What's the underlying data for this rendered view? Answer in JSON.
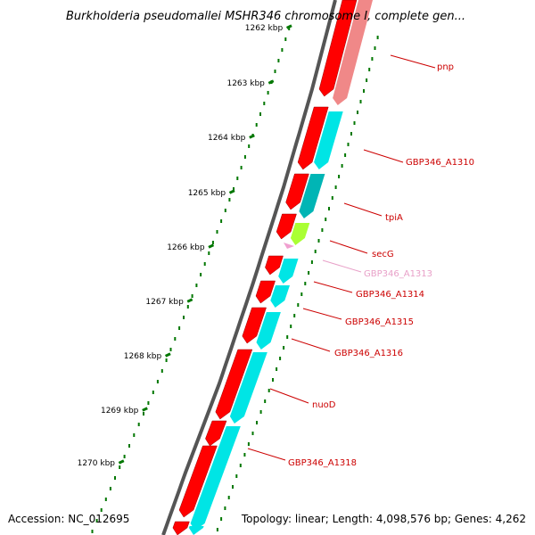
{
  "title": "Burkholderia pseudomallei MSHR346 chromosome I, complete gen...",
  "footer": {
    "accession": "Accession: NC_012695",
    "summary": "Topology: linear; Length: 4,098,576 bp; Genes: 4,262"
  },
  "colors": {
    "cds": "#ff0000",
    "cds_dark": "#990000",
    "feature_cyan": "#00e5e5",
    "feature_teal": "#00b5b5",
    "feature_green": "#aaff33",
    "feature_pink": "#f0a0d0",
    "pnp_pale": "#f08888",
    "label_red": "#cc0000",
    "label_pink": "#e8a0c8",
    "tick_green": "#007700",
    "backbone": "#555555"
  },
  "ruler": {
    "ticks": [
      {
        "label": "1262 kbp"
      },
      {
        "label": "1263 kbp"
      },
      {
        "label": "1264 kbp"
      },
      {
        "label": "1265 kbp"
      },
      {
        "label": "1266 kbp"
      },
      {
        "label": "1267 kbp"
      },
      {
        "label": "1268 kbp"
      },
      {
        "label": "1269 kbp"
      },
      {
        "label": "1270 kbp"
      }
    ]
  },
  "genes": [
    {
      "label": "pnp"
    },
    {
      "label": "GBP346_A1310"
    },
    {
      "label": "tpiA"
    },
    {
      "label": "secG"
    },
    {
      "label": "GBP346_A1313"
    },
    {
      "label": "GBP346_A1314"
    },
    {
      "label": "GBP346_A1315"
    },
    {
      "label": "GBP346_A1316"
    },
    {
      "label": "nuoD"
    },
    {
      "label": "GBP346_A1318"
    }
  ]
}
